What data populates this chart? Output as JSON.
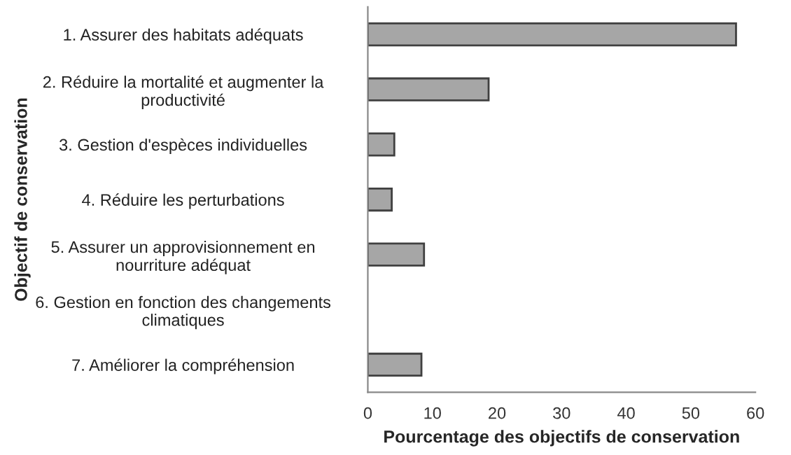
{
  "chart_data": {
    "type": "bar",
    "orientation": "horizontal",
    "xlabel": "Pourcentage des objectifs de conservation",
    "ylabel": "Objectif de conservation",
    "categories": [
      "1. Assurer des habitats adéquats",
      "2. Réduire la mortalité et augmenter la\nproductivité",
      "3. Gestion d'espèces individuelles",
      "4. Réduire les perturbations",
      "5. Assurer un approvisionnement en\nnourriture adéquat",
      "6. Gestion en fonction des changements\nclimatiques",
      "7. Améliorer la compréhension"
    ],
    "values": [
      57.0,
      18.7,
      4.1,
      3.7,
      8.7,
      0,
      8.3
    ],
    "color": "#a6a6a6",
    "xlim": [
      0,
      60
    ],
    "xticks": [
      0,
      10,
      20,
      30,
      40,
      50,
      60
    ],
    "grid": false,
    "legend": false
  }
}
